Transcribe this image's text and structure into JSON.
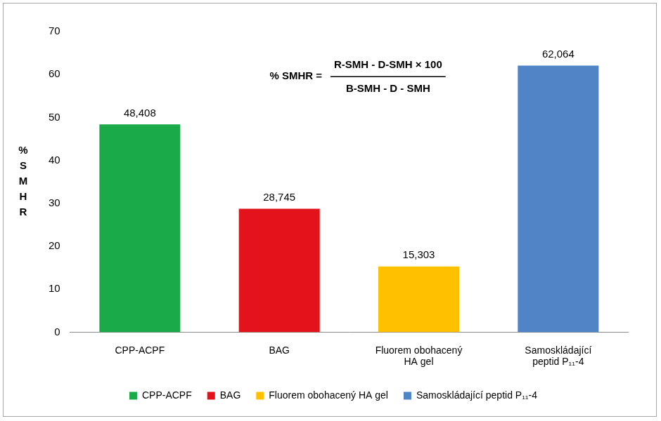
{
  "chart_data": {
    "type": "bar",
    "y_label": "% SMHR",
    "annotation": {
      "lhs": "% SMHR =",
      "numerator": "R-SMH - D-SMH × 100",
      "denominator": "B-SMH - D - SMH"
    },
    "categories": [
      "CPP-ACPF",
      "BAG",
      "Fluorem obohacený HA gel",
      "Samoskládající peptid P₁₁-4"
    ],
    "values": [
      48.408,
      28.745,
      15.303,
      62.064
    ],
    "value_labels": [
      "48,408",
      "28,745",
      "15,303",
      "62,064"
    ],
    "colors": [
      "#1aaa4a",
      "#e3131b",
      "#ffc000",
      "#4f85c6"
    ],
    "ylim": [
      0,
      70
    ],
    "yticks": [
      0,
      10,
      20,
      30,
      40,
      50,
      60,
      70
    ],
    "grid": false,
    "legend": "bottom",
    "data_labels": true
  }
}
